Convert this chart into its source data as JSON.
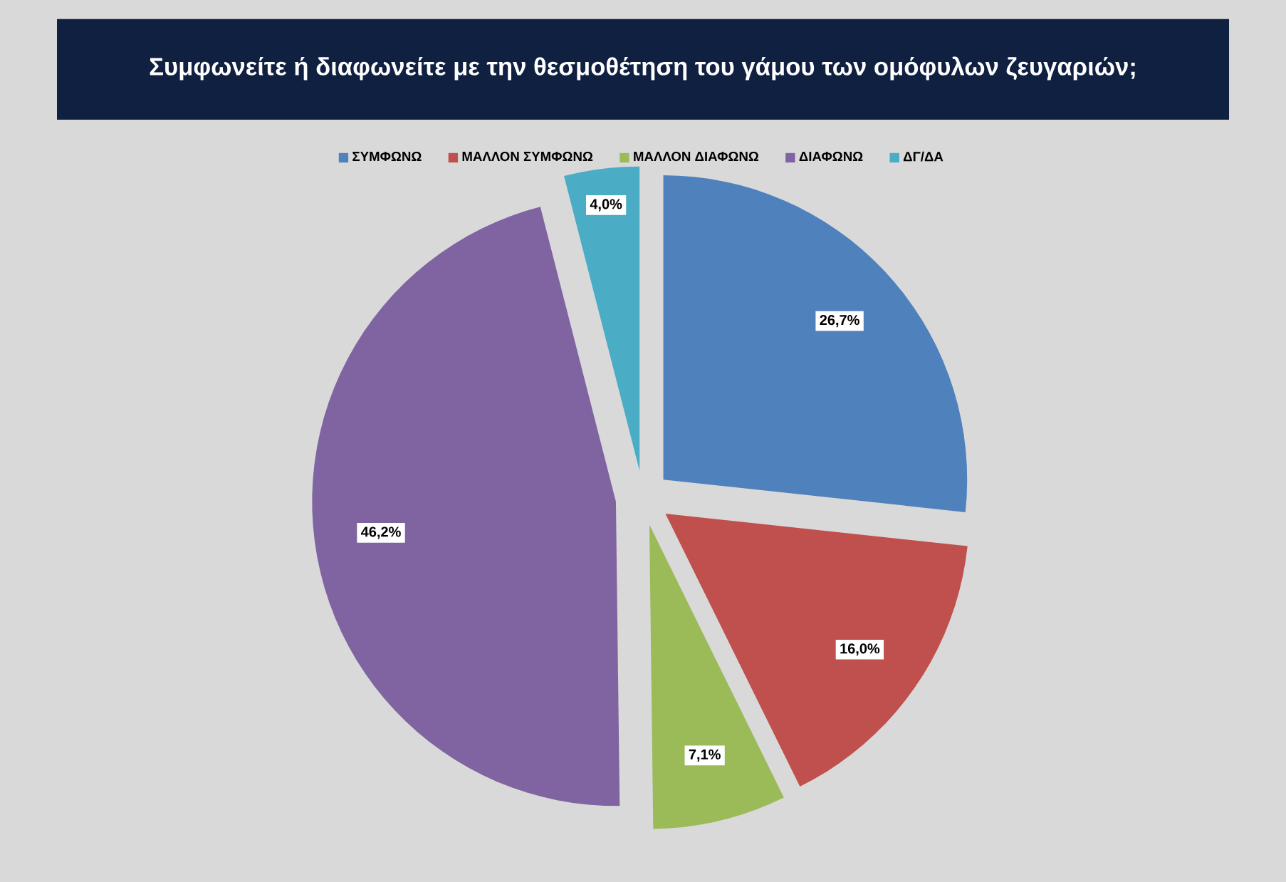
{
  "chart_data": {
    "type": "pie",
    "title": "Συμφωνείτε ή διαφωνείτε με την θεσμοθέτηση του γάμου των ομόφυλων ζευγαριών;",
    "categories": [
      "ΣΥΜΦΩΝΩ",
      "ΜΑΛΛΟΝ ΣΥΜΦΩΝΩ",
      "ΜΑΛΛΟΝ ΔΙΑΦΩΝΩ",
      "ΔΙΑΦΩΝΩ",
      "ΔΓ/ΔΑ"
    ],
    "values": [
      26.7,
      16.0,
      7.1,
      46.2,
      4.0
    ],
    "value_labels": [
      "26,7%",
      "16,0%",
      "7,1%",
      "46,2%",
      "4,0%"
    ],
    "colors": [
      "#4f81bd",
      "#c0504d",
      "#9bbb59",
      "#8064a2",
      "#4bacc6"
    ],
    "legend": "top"
  }
}
